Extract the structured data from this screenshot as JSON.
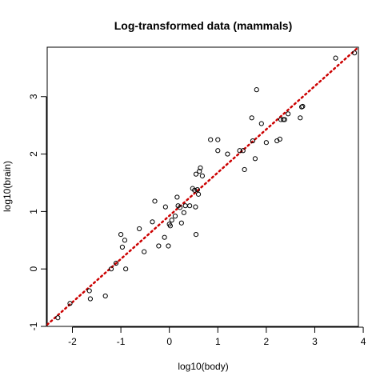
{
  "chart_data": {
    "type": "scatter",
    "title": "Log-transformed data (mammals)",
    "xlabel": "log10(body)",
    "ylabel": "log10(brain)",
    "xlim": [
      -2.52,
      3.9
    ],
    "ylim": [
      -1.0,
      3.86
    ],
    "xticks": [
      -2,
      -1,
      0,
      1,
      2,
      3,
      4
    ],
    "yticks": [
      -1,
      0,
      1,
      2,
      3
    ],
    "grid": false,
    "legend": "none",
    "colors": {
      "points": "#000000",
      "fit_line": "#cc0000"
    },
    "fit_line": {
      "x": [
        -2.52,
        3.9
      ],
      "y": [
        -0.97,
        3.86
      ],
      "style": "dotted"
    },
    "points": [
      [
        -2.3,
        -0.85
      ],
      [
        -2.05,
        -0.6
      ],
      [
        -1.65,
        -0.38
      ],
      [
        -1.63,
        -0.52
      ],
      [
        -1.32,
        -0.47
      ],
      [
        -1.2,
        0.0
      ],
      [
        -1.1,
        0.1
      ],
      [
        -1.0,
        0.6
      ],
      [
        -0.97,
        0.38
      ],
      [
        -0.92,
        0.5
      ],
      [
        -0.9,
        0.0
      ],
      [
        -0.62,
        0.7
      ],
      [
        -0.52,
        0.3
      ],
      [
        -0.35,
        0.82
      ],
      [
        -0.3,
        1.18
      ],
      [
        -0.22,
        0.4
      ],
      [
        -0.1,
        0.55
      ],
      [
        -0.08,
        1.08
      ],
      [
        -0.02,
        0.4
      ],
      [
        0.0,
        0.78
      ],
      [
        0.02,
        0.75
      ],
      [
        0.05,
        0.85
      ],
      [
        0.12,
        0.92
      ],
      [
        0.16,
        1.25
      ],
      [
        0.18,
        1.1
      ],
      [
        0.22,
        1.07
      ],
      [
        0.25,
        0.8
      ],
      [
        0.3,
        0.98
      ],
      [
        0.33,
        1.1
      ],
      [
        0.42,
        1.1
      ],
      [
        0.48,
        1.4
      ],
      [
        0.52,
        1.37
      ],
      [
        0.54,
        1.08
      ],
      [
        0.55,
        0.6
      ],
      [
        0.55,
        1.65
      ],
      [
        0.58,
        1.38
      ],
      [
        0.6,
        1.3
      ],
      [
        0.62,
        1.7
      ],
      [
        0.64,
        1.76
      ],
      [
        0.68,
        1.62
      ],
      [
        0.85,
        2.25
      ],
      [
        1.0,
        2.25
      ],
      [
        1.0,
        2.06
      ],
      [
        1.2,
        2.0
      ],
      [
        1.45,
        2.06
      ],
      [
        1.52,
        2.06
      ],
      [
        1.55,
        1.73
      ],
      [
        1.7,
        2.63
      ],
      [
        1.72,
        2.23
      ],
      [
        1.77,
        1.92
      ],
      [
        1.8,
        3.12
      ],
      [
        1.9,
        2.53
      ],
      [
        2.0,
        2.2
      ],
      [
        2.22,
        2.23
      ],
      [
        2.28,
        2.26
      ],
      [
        2.3,
        2.6
      ],
      [
        2.35,
        2.6
      ],
      [
        2.38,
        2.6
      ],
      [
        2.45,
        2.7
      ],
      [
        2.7,
        2.63
      ],
      [
        2.73,
        2.82
      ],
      [
        2.75,
        2.83
      ],
      [
        3.43,
        3.67
      ],
      [
        3.82,
        3.76
      ]
    ]
  }
}
